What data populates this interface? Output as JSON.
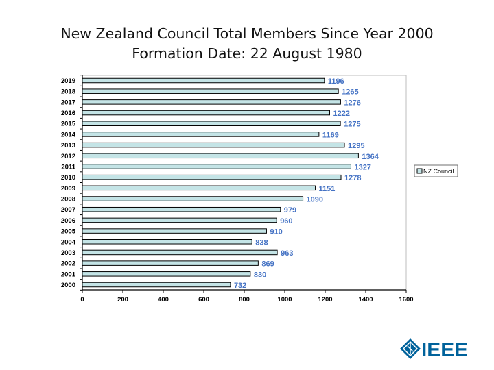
{
  "slide": {
    "title_line1": "New Zealand Council Total Members Since Year 2000",
    "title_line2": "Formation Date: 22 August 1980"
  },
  "chart_data": {
    "type": "bar",
    "orientation": "horizontal",
    "title": "New Zealand Council Total Members Since Year 2000",
    "subtitle": "Formation Date: 22 August 1980",
    "categories": [
      "2019",
      "2018",
      "2017",
      "2016",
      "2015",
      "2014",
      "2013",
      "2012",
      "2011",
      "2010",
      "2009",
      "2008",
      "2007",
      "2006",
      "2005",
      "2004",
      "2003",
      "2002",
      "2001",
      "2000"
    ],
    "series": [
      {
        "name": "NZ Council",
        "values": [
          1196,
          1265,
          1276,
          1222,
          1275,
          1169,
          1295,
          1364,
          1327,
          1278,
          1151,
          1090,
          979,
          960,
          910,
          838,
          963,
          869,
          830,
          732
        ]
      }
    ],
    "x_ticks": [
      "0",
      "200",
      "400",
      "600",
      "800",
      "1000",
      "1200",
      "1400",
      "1600"
    ],
    "xlim": [
      0,
      1600
    ],
    "xlabel": "",
    "ylabel": "",
    "legend_position": "right",
    "bar_color": "#c4e4e6",
    "bar_border_color": "#000000",
    "label_color": "#4472c4",
    "grid": false
  },
  "logo": {
    "text": "IEEE",
    "color": "#00629b"
  }
}
